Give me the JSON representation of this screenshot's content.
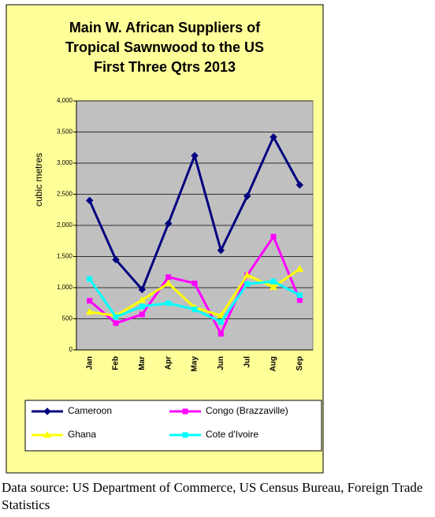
{
  "chart_data": {
    "type": "line",
    "title": [
      "Main W. African Suppliers of",
      "Tropical Sawnwood to the US",
      "First Three Qtrs 2013"
    ],
    "y_label": "cubic metres",
    "categories": [
      "Jan",
      "Feb",
      "Mar",
      "Apr",
      "May",
      "Jun",
      "Jul",
      "Aug",
      "Sep"
    ],
    "series": [
      {
        "name": "Cameroon",
        "color": "#000080",
        "marker": "diamond",
        "values": [
          2400,
          1450,
          970,
          2030,
          3120,
          1600,
          2470,
          3420,
          2650
        ]
      },
      {
        "name": "Congo (Brazzaville)",
        "color": "#ff00ff",
        "marker": "square",
        "values": [
          790,
          430,
          570,
          1170,
          1070,
          260,
          1200,
          1820,
          800
        ]
      },
      {
        "name": "Ghana",
        "color": "#ffff00",
        "marker": "triangle",
        "values": [
          610,
          550,
          800,
          1070,
          680,
          550,
          1200,
          1010,
          1300
        ]
      },
      {
        "name": "Cote d'Ivoire",
        "color": "#00ffff",
        "marker": "square",
        "values": [
          1140,
          530,
          700,
          750,
          650,
          450,
          1060,
          1100,
          880
        ]
      }
    ],
    "ylim": [
      0,
      4000
    ],
    "yticks": [
      0,
      500,
      {
        "value": 1000,
        "label": "1,000"
      },
      {
        "value": 1500,
        "label": "1,500"
      },
      {
        "value": 2000,
        "label": "2,000"
      },
      {
        "value": 2500,
        "label": "2,500"
      },
      {
        "value": 3000,
        "label": "3,000"
      },
      {
        "value": 3500,
        "label": "3,500"
      },
      {
        "value": 4000,
        "label": "4,000"
      }
    ],
    "grid": true
  },
  "source": "Data source: US Department of Commerce, US Census Bureau, Foreign Trade Statistics"
}
